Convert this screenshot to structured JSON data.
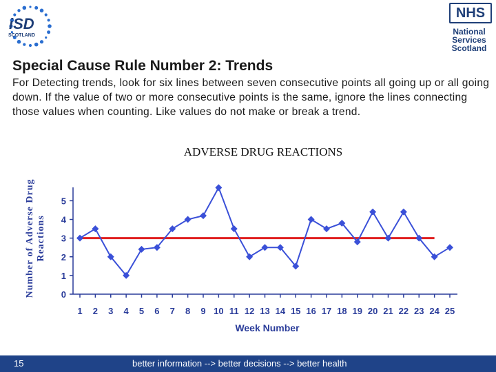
{
  "header": {
    "isd_logo": {
      "brand": "iSD",
      "region": "SCOTLAND"
    },
    "nhs_logo": {
      "badge": "NHS",
      "line1": "National",
      "line2": "Services",
      "line3": "Scotland"
    }
  },
  "slide": {
    "title": "Special Cause Rule Number 2:  Trends",
    "description": "For Detecting trends, look for six lines between seven consecutive points all going up or all going down.  If the value of two or more consecutive points is the same, ignore the lines connecting those values when counting.  Like values do not make or break a trend."
  },
  "colors": {
    "series": "#3a50d8",
    "centre_line": "#e02020",
    "footer": "#1f4388",
    "dots": "#2a6ed0"
  },
  "chart_data": {
    "type": "line",
    "title": "ADVERSE DRUG REACTIONS",
    "xlabel": "Week Number",
    "ylabel": "Number of Adverse Drug Reactions",
    "x": [
      1,
      2,
      3,
      4,
      5,
      6,
      7,
      8,
      9,
      10,
      11,
      12,
      13,
      14,
      15,
      16,
      17,
      18,
      19,
      20,
      21,
      22,
      23,
      24,
      25
    ],
    "y": [
      3,
      3.5,
      2,
      1,
      2.4,
      2.5,
      3.5,
      4,
      4.2,
      5.7,
      3.5,
      2,
      2.5,
      2.5,
      1.5,
      4,
      3.5,
      3.8,
      2.8,
      4.4,
      3,
      4.4,
      3,
      2,
      2.5
    ],
    "y_ticks": [
      0,
      1,
      2,
      3,
      4,
      5
    ],
    "ylim": [
      0,
      5.9
    ],
    "reference_line": {
      "y": 3,
      "x_start": 1,
      "x_end": 24
    },
    "grid": false,
    "legend": "none"
  },
  "footer": {
    "page_number": "15",
    "tagline": "better information --> better decisions --> better health"
  }
}
